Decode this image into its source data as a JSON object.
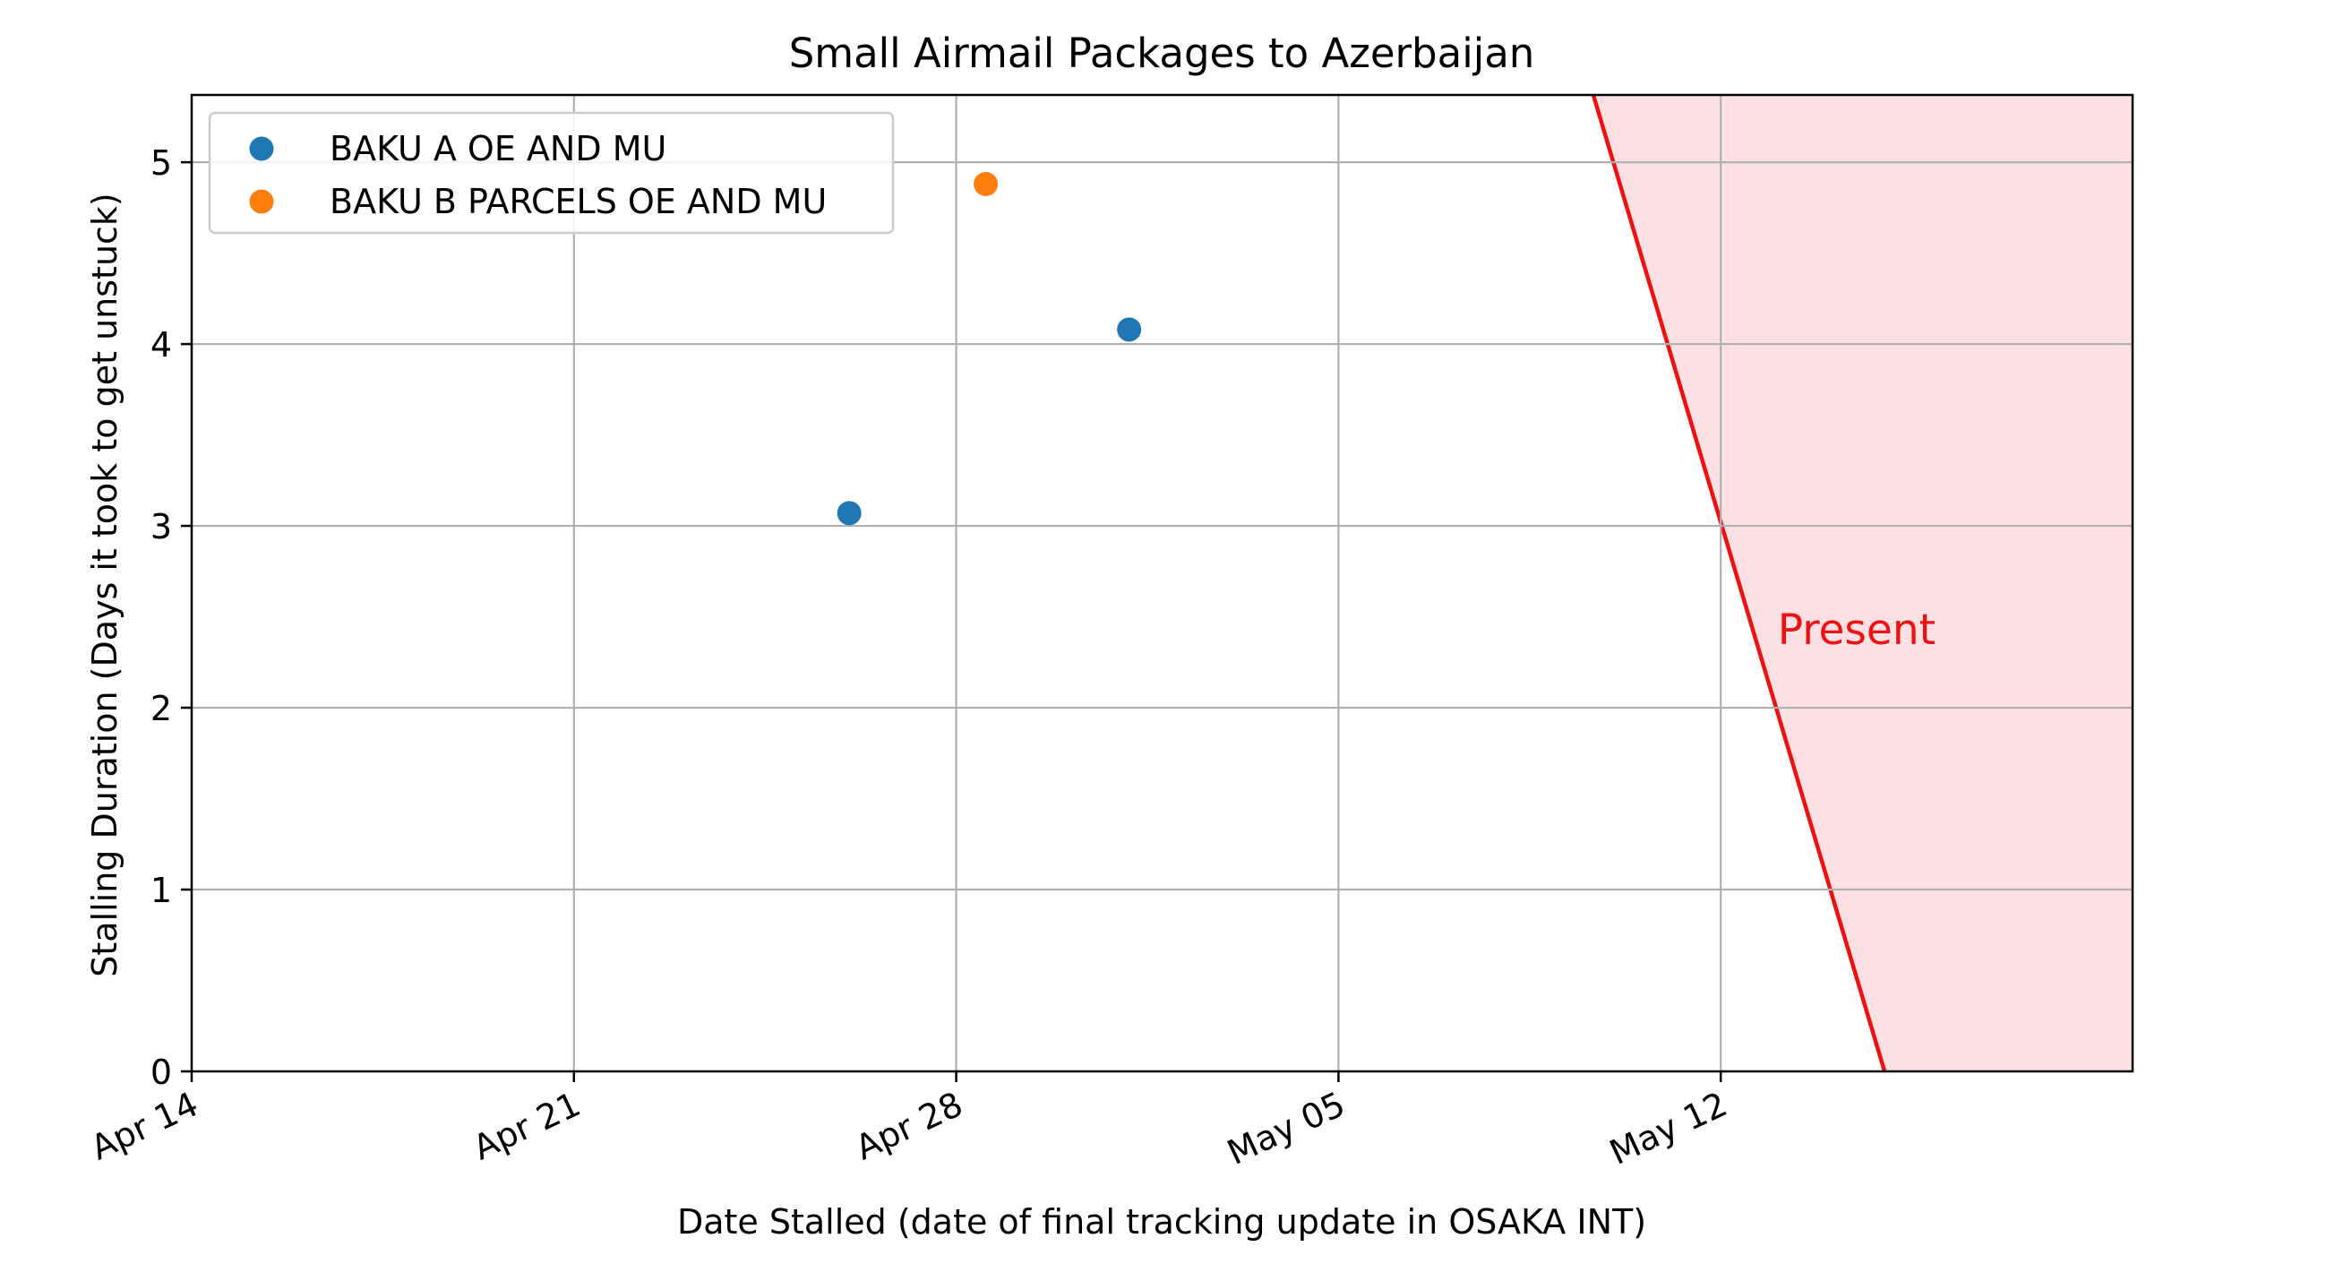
{
  "chart_data": {
    "type": "scatter",
    "title": "Small Airmail Packages to Azerbaijan",
    "xlabel": "Date Stalled (date of final tracking update in OSAKA INT)",
    "ylabel": "Stalling Duration (Days it took to get unstuck)",
    "x_axis": "date",
    "xlim": [
      "2021-04-14",
      "2021-05-19T13:00"
    ],
    "ylim": [
      0,
      5.37
    ],
    "x_ticks": [
      {
        "date": "2021-04-14",
        "label": "Apr 14"
      },
      {
        "date": "2021-04-21",
        "label": "Apr 21"
      },
      {
        "date": "2021-04-28",
        "label": "Apr 28"
      },
      {
        "date": "2021-05-05",
        "label": "May 05"
      },
      {
        "date": "2021-05-12",
        "label": "May 12"
      }
    ],
    "y_ticks": [
      0,
      1,
      2,
      3,
      4,
      5
    ],
    "grid": true,
    "legend_position": "upper-left",
    "series": [
      {
        "name": "BAKU A OE AND MU",
        "color": "#1f77b4",
        "points": [
          {
            "x": "2021-04-26T01:00",
            "y": 3.07
          },
          {
            "x": "2021-05-01T04:00",
            "y": 4.08
          }
        ]
      },
      {
        "name": "BAKU B PARCELS OE AND MU",
        "color": "#ff7f0e",
        "points": [
          {
            "x": "2021-04-28T13:00",
            "y": 4.88
          }
        ]
      }
    ],
    "present_region": {
      "label": "Present",
      "line_color": "#ee1111",
      "fill_color": "#fde0e3",
      "line": [
        {
          "x": "2021-05-09T16:00",
          "y": 5.37
        },
        {
          "x": "2021-05-15T00:00",
          "y": 0
        }
      ],
      "label_anchor": {
        "x": "2021-05-13T01:00",
        "y": 2.35
      }
    }
  }
}
